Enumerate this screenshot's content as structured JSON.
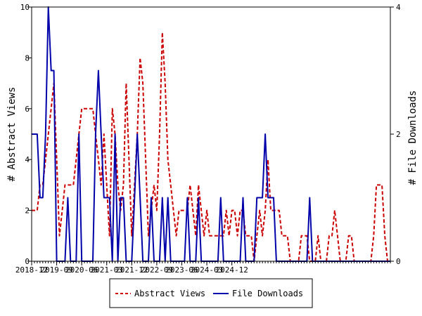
{
  "chart_data": {
    "type": "line",
    "y_left_label": "# Abstract Views",
    "y_right_label": "# File Downloads",
    "y_left_lim": [
      0,
      10
    ],
    "y_right_lim": [
      0,
      4
    ],
    "y_left_ticks": [
      "0",
      "2",
      "4",
      "6",
      "8",
      "10"
    ],
    "y_right_ticks": [
      "0",
      "2",
      "4"
    ],
    "x_ticks": [
      "2018-12",
      "2019-09",
      "2020-06",
      "2021-03",
      "2021-12",
      "2022-09",
      "2023-06",
      "2024-03",
      "2024-12"
    ],
    "grid": false,
    "legend_position": "bottom",
    "series": [
      {
        "name": "Abstract Views",
        "axis": "left",
        "color": "#cc0000",
        "dashed": true,
        "values": [
          2,
          2,
          2,
          3,
          3,
          4,
          5,
          6,
          7,
          4,
          1,
          2,
          3,
          3,
          3,
          3,
          4,
          5,
          6,
          6,
          6,
          6,
          6,
          5,
          4,
          3,
          5,
          3,
          1,
          6,
          5,
          3,
          2,
          3,
          7,
          4,
          1,
          3,
          5,
          8,
          7,
          4,
          1,
          2,
          3,
          2,
          5,
          9,
          7,
          4,
          3,
          2,
          1,
          2,
          2,
          2,
          2,
          3,
          2,
          1,
          3,
          2,
          1,
          2,
          1,
          1,
          1,
          1,
          1,
          1,
          2,
          1,
          2,
          2,
          1,
          2,
          2,
          1,
          1,
          1,
          0,
          1,
          2,
          1,
          2,
          4,
          2,
          2,
          2,
          2,
          1,
          1,
          1,
          0,
          0,
          0,
          0,
          1,
          1,
          1,
          0,
          0,
          0,
          1,
          0,
          0,
          0,
          1,
          1,
          2,
          1,
          0,
          0,
          0,
          1,
          1,
          0,
          0,
          0,
          0,
          0,
          0,
          0,
          1,
          3,
          3,
          3,
          1,
          0,
          0
        ]
      },
      {
        "name": "File Downloads",
        "axis": "right",
        "color": "#0000aa",
        "dashed": false,
        "values": [
          2,
          2,
          2,
          1,
          1,
          2,
          4,
          3,
          3,
          0,
          0,
          0,
          0,
          1,
          0,
          0,
          0,
          2,
          0,
          0,
          0,
          0,
          0,
          2,
          3,
          2,
          1,
          1,
          1,
          0,
          2,
          0,
          1,
          1,
          0,
          0,
          0,
          1,
          2,
          1,
          0,
          0,
          0,
          1,
          0,
          0,
          0,
          1,
          0,
          1,
          0,
          0,
          0,
          0,
          0,
          0,
          1,
          0,
          0,
          0,
          1,
          0,
          0,
          0,
          0,
          0,
          0,
          0,
          1,
          0,
          0,
          0,
          0,
          0,
          0,
          0,
          1,
          0,
          0,
          0,
          0,
          1,
          1,
          1,
          2,
          1,
          1,
          1,
          0,
          0,
          0,
          0,
          0,
          0,
          0,
          0,
          0,
          0,
          0,
          0,
          1,
          0,
          0,
          0,
          0,
          0,
          0,
          0,
          0,
          0,
          0,
          0,
          0,
          0,
          0,
          0,
          0,
          0,
          0,
          0,
          0,
          0,
          0,
          0,
          0,
          0,
          0,
          0,
          0,
          0
        ]
      }
    ]
  }
}
